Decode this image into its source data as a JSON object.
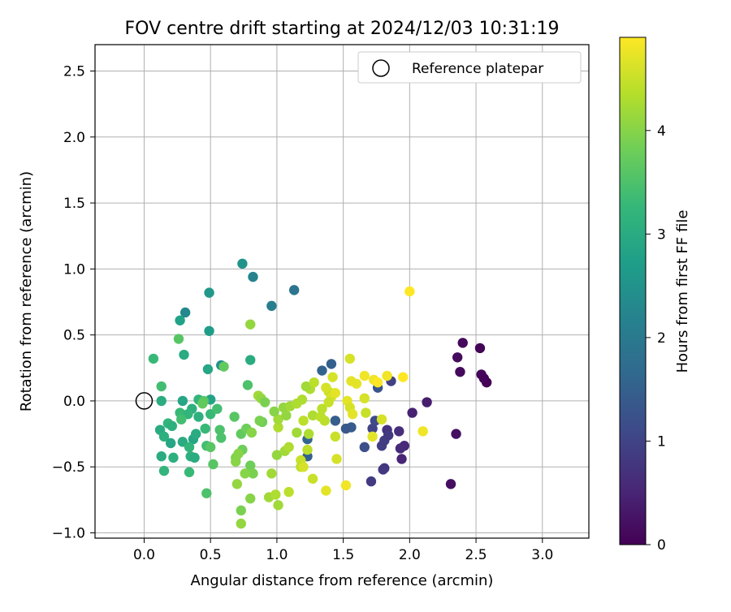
{
  "chart_data": {
    "type": "scatter",
    "title": "FOV centre drift starting at 2024/12/03 10:31:19",
    "xlabel": "Angular distance from reference (arcmin)",
    "ylabel": "Rotation from reference (arcmin)",
    "xlim": [
      -0.37,
      3.35
    ],
    "ylim": [
      -1.04,
      2.7
    ],
    "xticks": [
      0.0,
      0.5,
      1.0,
      1.5,
      2.0,
      2.5,
      3.0
    ],
    "xtick_labels": [
      "0.0",
      "0.5",
      "1.0",
      "1.5",
      "2.0",
      "2.5",
      "3.0"
    ],
    "yticks": [
      -1.0,
      -0.5,
      0.0,
      0.5,
      1.0,
      1.5,
      2.0,
      2.5
    ],
    "ytick_labels": [
      "−1.0",
      "−0.5",
      "0.0",
      "0.5",
      "1.0",
      "1.5",
      "2.0",
      "2.5"
    ],
    "grid": true,
    "legend": {
      "position": "top-right",
      "label": "Reference platepar",
      "marker": "open-circle"
    },
    "reference_point": {
      "x": 0.0,
      "y": 0.0
    },
    "colormap": "viridis",
    "colorbar": {
      "label": "Hours from first FF file",
      "range": [
        0,
        4.9
      ],
      "ticks": [
        0,
        1,
        2,
        3,
        4
      ],
      "tick_labels": [
        "0",
        "1",
        "2",
        "3",
        "4"
      ],
      "stops": [
        "#440154",
        "#482878",
        "#3e4989",
        "#31688e",
        "#26828e",
        "#1f9e89",
        "#35b779",
        "#6ece58",
        "#b5de2b",
        "#fde725"
      ]
    },
    "points": [
      {
        "x": 2.4,
        "y": 0.44,
        "h": 0.1
      },
      {
        "x": 2.53,
        "y": 0.4,
        "h": 0.05
      },
      {
        "x": 2.36,
        "y": 0.33,
        "h": 0.15
      },
      {
        "x": 2.38,
        "y": 0.22,
        "h": 0.12
      },
      {
        "x": 2.54,
        "y": 0.2,
        "h": 0.08
      },
      {
        "x": 2.58,
        "y": 0.14,
        "h": 0.02
      },
      {
        "x": 2.56,
        "y": 0.17,
        "h": 0.04
      },
      {
        "x": 2.13,
        "y": -0.01,
        "h": 0.4
      },
      {
        "x": 2.02,
        "y": -0.09,
        "h": 0.45
      },
      {
        "x": 2.35,
        "y": -0.25,
        "h": 0.2
      },
      {
        "x": 2.31,
        "y": -0.63,
        "h": 0.18
      },
      {
        "x": 1.96,
        "y": -0.34,
        "h": 0.55
      },
      {
        "x": 1.93,
        "y": -0.36,
        "h": 0.6
      },
      {
        "x": 1.94,
        "y": -0.44,
        "h": 0.5
      },
      {
        "x": 1.92,
        "y": -0.23,
        "h": 0.65
      },
      {
        "x": 1.83,
        "y": -0.22,
        "h": 0.7
      },
      {
        "x": 1.81,
        "y": -0.51,
        "h": 0.75
      },
      {
        "x": 1.8,
        "y": -0.52,
        "h": 0.8
      },
      {
        "x": 1.71,
        "y": -0.61,
        "h": 0.85
      },
      {
        "x": 1.79,
        "y": -0.34,
        "h": 0.9
      },
      {
        "x": 1.81,
        "y": -0.3,
        "h": 0.88
      },
      {
        "x": 1.84,
        "y": -0.26,
        "h": 0.82
      },
      {
        "x": 1.66,
        "y": -0.35,
        "h": 1.2
      },
      {
        "x": 1.72,
        "y": -0.21,
        "h": 1.0
      },
      {
        "x": 1.74,
        "y": -0.15,
        "h": 1.1
      },
      {
        "x": 1.86,
        "y": 0.15,
        "h": 0.95
      },
      {
        "x": 1.76,
        "y": 0.1,
        "h": 1.3
      },
      {
        "x": 1.56,
        "y": -0.2,
        "h": 1.4
      },
      {
        "x": 1.52,
        "y": -0.21,
        "h": 1.35
      },
      {
        "x": 1.44,
        "y": -0.15,
        "h": 1.45
      },
      {
        "x": 1.41,
        "y": 0.28,
        "h": 1.5
      },
      {
        "x": 1.34,
        "y": 0.23,
        "h": 1.55
      },
      {
        "x": 1.23,
        "y": -0.29,
        "h": 1.6
      },
      {
        "x": 1.23,
        "y": -0.42,
        "h": 1.5
      },
      {
        "x": 1.13,
        "y": 0.84,
        "h": 1.9
      },
      {
        "x": 0.96,
        "y": 0.72,
        "h": 2.1
      },
      {
        "x": 0.82,
        "y": 0.94,
        "h": 2.2
      },
      {
        "x": 0.74,
        "y": 1.04,
        "h": 2.5
      },
      {
        "x": 0.49,
        "y": 0.82,
        "h": 2.6
      },
      {
        "x": 0.31,
        "y": 0.67,
        "h": 2.3
      },
      {
        "x": 0.58,
        "y": 0.27,
        "h": 2.4
      },
      {
        "x": 0.49,
        "y": 0.53,
        "h": 2.7
      },
      {
        "x": 0.27,
        "y": 0.61,
        "h": 2.8
      },
      {
        "x": 0.3,
        "y": 0.35,
        "h": 3.0
      },
      {
        "x": 0.48,
        "y": 0.24,
        "h": 2.9
      },
      {
        "x": 0.8,
        "y": 0.31,
        "h": 3.0
      },
      {
        "x": 0.07,
        "y": 0.32,
        "h": 3.3
      },
      {
        "x": 0.13,
        "y": 0.11,
        "h": 3.4
      },
      {
        "x": 0.13,
        "y": 0.0,
        "h": 3.0
      },
      {
        "x": 0.29,
        "y": 0.0,
        "h": 2.9
      },
      {
        "x": 0.41,
        "y": 0.01,
        "h": 3.2
      },
      {
        "x": 0.5,
        "y": 0.01,
        "h": 2.8
      },
      {
        "x": 0.36,
        "y": -0.06,
        "h": 3.1
      },
      {
        "x": 0.27,
        "y": -0.09,
        "h": 3.3
      },
      {
        "x": 0.33,
        "y": -0.1,
        "h": 3.2
      },
      {
        "x": 0.41,
        "y": -0.12,
        "h": 3.1
      },
      {
        "x": 0.5,
        "y": -0.1,
        "h": 3.3
      },
      {
        "x": 0.28,
        "y": -0.14,
        "h": 3.4
      },
      {
        "x": 0.18,
        "y": -0.17,
        "h": 3.2
      },
      {
        "x": 0.21,
        "y": -0.19,
        "h": 3.1
      },
      {
        "x": 0.12,
        "y": -0.22,
        "h": 3.0
      },
      {
        "x": 0.15,
        "y": -0.27,
        "h": 3.1
      },
      {
        "x": 0.2,
        "y": -0.32,
        "h": 2.9
      },
      {
        "x": 0.29,
        "y": -0.31,
        "h": 3.0
      },
      {
        "x": 0.37,
        "y": -0.29,
        "h": 2.9
      },
      {
        "x": 0.39,
        "y": -0.25,
        "h": 3.0
      },
      {
        "x": 0.34,
        "y": -0.35,
        "h": 3.2
      },
      {
        "x": 0.35,
        "y": -0.42,
        "h": 3.1
      },
      {
        "x": 0.38,
        "y": -0.43,
        "h": 3.0
      },
      {
        "x": 0.22,
        "y": -0.43,
        "h": 3.1
      },
      {
        "x": 0.13,
        "y": -0.42,
        "h": 3.0
      },
      {
        "x": 0.15,
        "y": -0.53,
        "h": 3.2
      },
      {
        "x": 0.34,
        "y": -0.54,
        "h": 3.3
      },
      {
        "x": 0.47,
        "y": -0.34,
        "h": 3.4
      },
      {
        "x": 0.46,
        "y": -0.21,
        "h": 3.3
      },
      {
        "x": 0.55,
        "y": -0.06,
        "h": 3.4
      },
      {
        "x": 0.57,
        "y": -0.22,
        "h": 3.5
      },
      {
        "x": 0.58,
        "y": -0.28,
        "h": 3.5
      },
      {
        "x": 0.52,
        "y": -0.48,
        "h": 3.6
      },
      {
        "x": 0.47,
        "y": -0.7,
        "h": 3.5
      },
      {
        "x": 0.45,
        "y": 0.0,
        "h": 3.6
      },
      {
        "x": 0.44,
        "y": -0.02,
        "h": 3.7
      },
      {
        "x": 0.26,
        "y": 0.47,
        "h": 3.6
      },
      {
        "x": 0.6,
        "y": 0.26,
        "h": 3.7
      },
      {
        "x": 0.68,
        "y": -0.12,
        "h": 3.6
      },
      {
        "x": 0.73,
        "y": -0.25,
        "h": 3.7
      },
      {
        "x": 0.77,
        "y": -0.21,
        "h": 3.8
      },
      {
        "x": 0.78,
        "y": 0.12,
        "h": 3.5
      },
      {
        "x": 0.8,
        "y": 0.58,
        "h": 4.1
      },
      {
        "x": 0.86,
        "y": 0.04,
        "h": 4.2
      },
      {
        "x": 0.88,
        "y": 0.02,
        "h": 4.1
      },
      {
        "x": 0.91,
        "y": -0.01,
        "h": 3.9
      },
      {
        "x": 0.89,
        "y": -0.16,
        "h": 3.8
      },
      {
        "x": 0.87,
        "y": -0.15,
        "h": 3.9
      },
      {
        "x": 0.81,
        "y": -0.24,
        "h": 4.0
      },
      {
        "x": 0.74,
        "y": -0.37,
        "h": 3.8
      },
      {
        "x": 0.69,
        "y": -0.43,
        "h": 3.9
      },
      {
        "x": 0.69,
        "y": -0.46,
        "h": 4.0
      },
      {
        "x": 0.71,
        "y": -0.4,
        "h": 4.0
      },
      {
        "x": 0.8,
        "y": -0.49,
        "h": 3.8
      },
      {
        "x": 0.82,
        "y": -0.55,
        "h": 3.9
      },
      {
        "x": 0.76,
        "y": -0.55,
        "h": 4.0
      },
      {
        "x": 0.7,
        "y": -0.63,
        "h": 4.1
      },
      {
        "x": 0.8,
        "y": -0.74,
        "h": 4.0
      },
      {
        "x": 0.73,
        "y": -0.83,
        "h": 3.9
      },
      {
        "x": 0.73,
        "y": -0.93,
        "h": 4.1
      },
      {
        "x": 0.94,
        "y": -0.73,
        "h": 4.2
      },
      {
        "x": 0.99,
        "y": -0.71,
        "h": 4.3
      },
      {
        "x": 1.01,
        "y": -0.79,
        "h": 4.2
      },
      {
        "x": 1.09,
        "y": -0.69,
        "h": 4.4
      },
      {
        "x": 0.96,
        "y": -0.55,
        "h": 4.2
      },
      {
        "x": 1.0,
        "y": -0.41,
        "h": 4.1
      },
      {
        "x": 1.06,
        "y": -0.38,
        "h": 4.2
      },
      {
        "x": 1.09,
        "y": -0.35,
        "h": 4.3
      },
      {
        "x": 1.18,
        "y": -0.45,
        "h": 4.5
      },
      {
        "x": 1.18,
        "y": -0.5,
        "h": 4.4
      },
      {
        "x": 1.2,
        "y": -0.5,
        "h": 4.6
      },
      {
        "x": 1.27,
        "y": -0.59,
        "h": 4.5
      },
      {
        "x": 1.37,
        "y": -0.68,
        "h": 4.7
      },
      {
        "x": 1.45,
        "y": -0.44,
        "h": 4.6
      },
      {
        "x": 1.44,
        "y": -0.27,
        "h": 4.5
      },
      {
        "x": 1.52,
        "y": -0.64,
        "h": 4.8
      },
      {
        "x": 1.23,
        "y": -0.37,
        "h": 4.4
      },
      {
        "x": 1.24,
        "y": -0.25,
        "h": 4.3
      },
      {
        "x": 1.15,
        "y": -0.24,
        "h": 4.2
      },
      {
        "x": 1.01,
        "y": -0.2,
        "h": 4.3
      },
      {
        "x": 1.01,
        "y": -0.14,
        "h": 4.2
      },
      {
        "x": 1.07,
        "y": -0.11,
        "h": 4.1
      },
      {
        "x": 0.98,
        "y": -0.08,
        "h": 4.0
      },
      {
        "x": 1.05,
        "y": -0.05,
        "h": 4.1
      },
      {
        "x": 1.1,
        "y": -0.04,
        "h": 4.2
      },
      {
        "x": 1.15,
        "y": -0.02,
        "h": 4.3
      },
      {
        "x": 1.19,
        "y": 0.01,
        "h": 4.3
      },
      {
        "x": 1.2,
        "y": -0.15,
        "h": 4.4
      },
      {
        "x": 1.27,
        "y": -0.11,
        "h": 4.3
      },
      {
        "x": 1.33,
        "y": -0.12,
        "h": 4.4
      },
      {
        "x": 1.36,
        "y": -0.15,
        "h": 4.4
      },
      {
        "x": 1.25,
        "y": 0.09,
        "h": 4.3
      },
      {
        "x": 1.22,
        "y": 0.11,
        "h": 4.2
      },
      {
        "x": 1.28,
        "y": 0.14,
        "h": 4.4
      },
      {
        "x": 1.39,
        "y": 0.07,
        "h": 4.5
      },
      {
        "x": 1.37,
        "y": 0.1,
        "h": 4.6
      },
      {
        "x": 1.41,
        "y": 0.03,
        "h": 4.6
      },
      {
        "x": 1.44,
        "y": 0.06,
        "h": 4.7
      },
      {
        "x": 1.39,
        "y": -0.01,
        "h": 4.5
      },
      {
        "x": 1.34,
        "y": -0.06,
        "h": 4.4
      },
      {
        "x": 1.42,
        "y": 0.18,
        "h": 4.6
      },
      {
        "x": 1.53,
        "y": 0.0,
        "h": 4.7
      },
      {
        "x": 1.55,
        "y": -0.05,
        "h": 4.6
      },
      {
        "x": 1.57,
        "y": -0.1,
        "h": 4.7
      },
      {
        "x": 1.56,
        "y": 0.15,
        "h": 4.7
      },
      {
        "x": 1.55,
        "y": 0.32,
        "h": 4.6
      },
      {
        "x": 1.6,
        "y": 0.13,
        "h": 4.7
      },
      {
        "x": 1.66,
        "y": 0.02,
        "h": 4.6
      },
      {
        "x": 1.67,
        "y": -0.09,
        "h": 4.5
      },
      {
        "x": 1.66,
        "y": 0.19,
        "h": 4.8
      },
      {
        "x": 1.73,
        "y": 0.16,
        "h": 4.8
      },
      {
        "x": 1.76,
        "y": 0.14,
        "h": 4.9
      },
      {
        "x": 1.83,
        "y": 0.19,
        "h": 4.8
      },
      {
        "x": 1.95,
        "y": 0.18,
        "h": 4.9
      },
      {
        "x": 1.79,
        "y": -0.14,
        "h": 4.6
      },
      {
        "x": 1.72,
        "y": -0.27,
        "h": 4.7
      },
      {
        "x": 2.1,
        "y": -0.23,
        "h": 4.8
      },
      {
        "x": 2.0,
        "y": 0.83,
        "h": 4.9
      },
      {
        "x": 0.5,
        "y": -0.35,
        "h": 3.6
      }
    ]
  }
}
